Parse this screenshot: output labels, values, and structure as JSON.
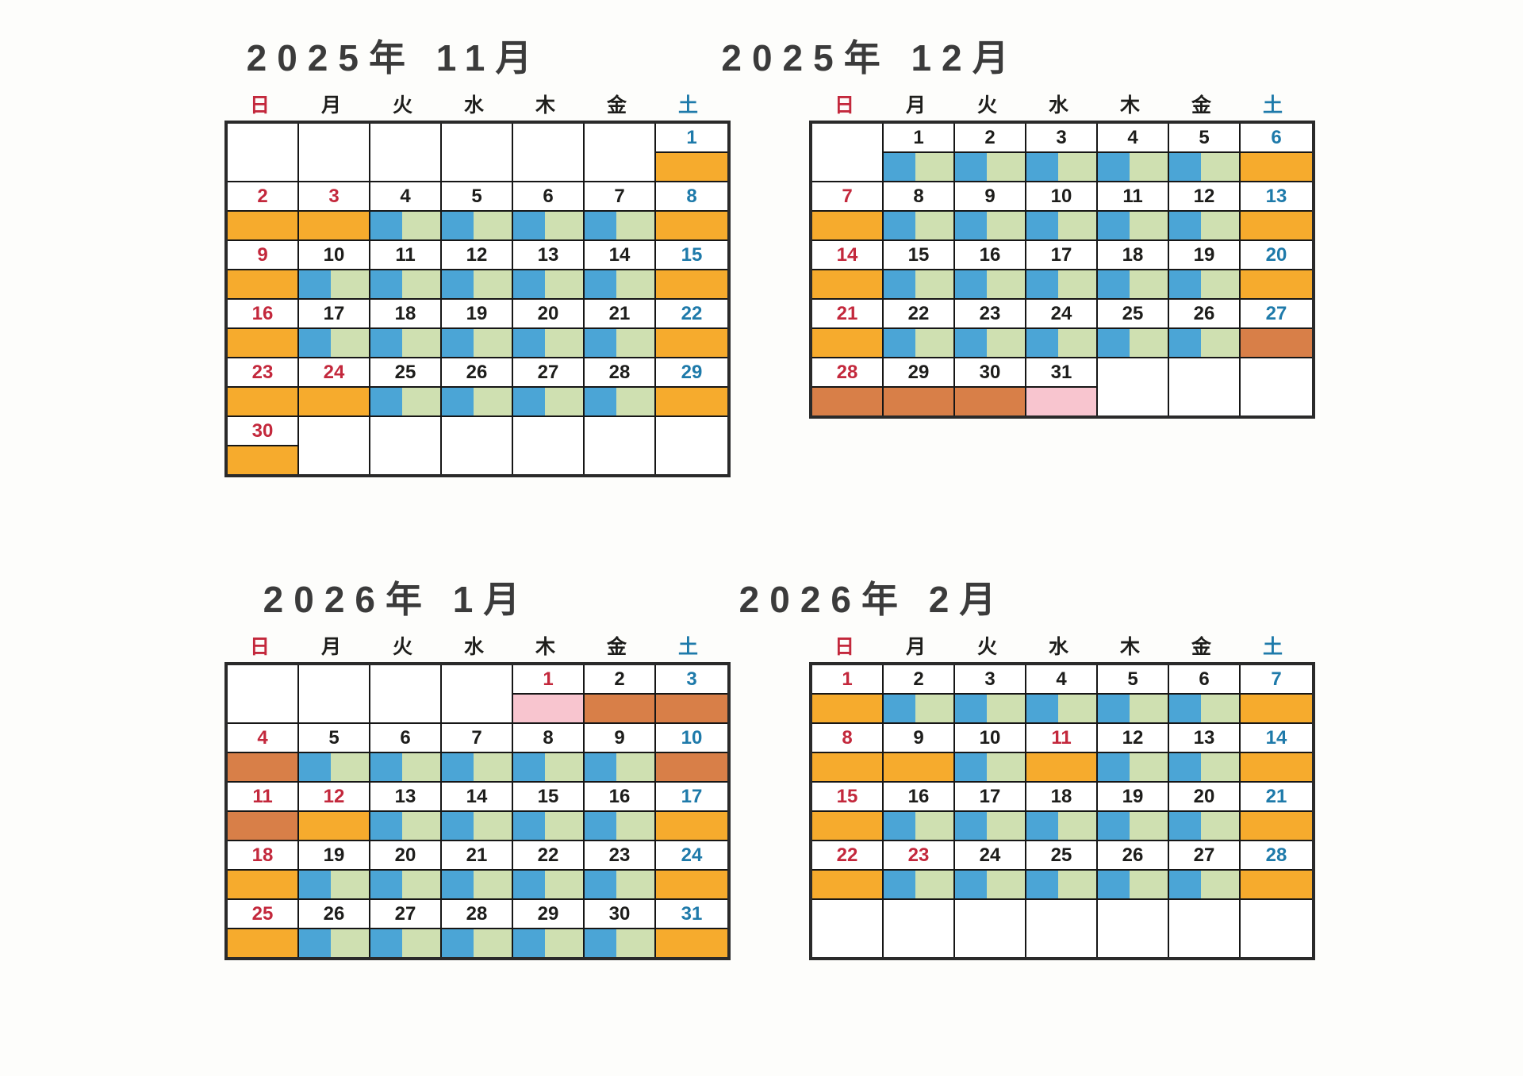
{
  "document": {
    "kind": "scanned shop closing-days calendar, 4 months",
    "background": "#fdfdfb"
  },
  "colors": {
    "closed_yellow": "#f6ab2d",
    "open_blue": "#4ba5d6",
    "open_green": "#cfe0b1",
    "closed_dark_orange": "#d87f48",
    "special_pink": "#f8c5cf",
    "sunday_text": "#c3283c",
    "saturday_text": "#1e7aaa",
    "weekday_text": "#1d1d1b",
    "title_text": "#3b3b3b",
    "grid_line": "#161616"
  },
  "weekdays": [
    {
      "label": "日",
      "color_key": "sunday_text"
    },
    {
      "label": "月",
      "color_key": "weekday_text"
    },
    {
      "label": "火",
      "color_key": "weekday_text"
    },
    {
      "label": "水",
      "color_key": "weekday_text"
    },
    {
      "label": "木",
      "color_key": "weekday_text"
    },
    {
      "label": "金",
      "color_key": "weekday_text"
    },
    {
      "label": "土",
      "color_key": "saturday_text"
    }
  ],
  "calendars": [
    {
      "title": "2025年 11月",
      "weeks": [
        [
          null,
          null,
          null,
          null,
          null,
          null,
          {
            "d": "1",
            "n": "blue",
            "band": "yellow"
          }
        ],
        [
          {
            "d": "2",
            "n": "red",
            "band": "yellow"
          },
          {
            "d": "3",
            "n": "red",
            "band": "yellow"
          },
          {
            "d": "4",
            "n": "black",
            "band": "open"
          },
          {
            "d": "5",
            "n": "black",
            "band": "open"
          },
          {
            "d": "6",
            "n": "black",
            "band": "open"
          },
          {
            "d": "7",
            "n": "black",
            "band": "open"
          },
          {
            "d": "8",
            "n": "blue",
            "band": "yellow"
          }
        ],
        [
          {
            "d": "9",
            "n": "red",
            "band": "yellow"
          },
          {
            "d": "10",
            "n": "black",
            "band": "open"
          },
          {
            "d": "11",
            "n": "black",
            "band": "open"
          },
          {
            "d": "12",
            "n": "black",
            "band": "open"
          },
          {
            "d": "13",
            "n": "black",
            "band": "open"
          },
          {
            "d": "14",
            "n": "black",
            "band": "open"
          },
          {
            "d": "15",
            "n": "blue",
            "band": "yellow"
          }
        ],
        [
          {
            "d": "16",
            "n": "red",
            "band": "yellow"
          },
          {
            "d": "17",
            "n": "black",
            "band": "open"
          },
          {
            "d": "18",
            "n": "black",
            "band": "open"
          },
          {
            "d": "19",
            "n": "black",
            "band": "open"
          },
          {
            "d": "20",
            "n": "black",
            "band": "open"
          },
          {
            "d": "21",
            "n": "black",
            "band": "open"
          },
          {
            "d": "22",
            "n": "blue",
            "band": "yellow"
          }
        ],
        [
          {
            "d": "23",
            "n": "red",
            "band": "yellow"
          },
          {
            "d": "24",
            "n": "red",
            "band": "yellow"
          },
          {
            "d": "25",
            "n": "black",
            "band": "open"
          },
          {
            "d": "26",
            "n": "black",
            "band": "open"
          },
          {
            "d": "27",
            "n": "black",
            "band": "open"
          },
          {
            "d": "28",
            "n": "black",
            "band": "open"
          },
          {
            "d": "29",
            "n": "blue",
            "band": "yellow"
          }
        ],
        [
          {
            "d": "30",
            "n": "red",
            "band": "yellow"
          },
          null,
          null,
          null,
          null,
          null,
          null
        ]
      ]
    },
    {
      "title": "2025年 12月",
      "weeks": [
        [
          null,
          {
            "d": "1",
            "n": "black",
            "band": "open"
          },
          {
            "d": "2",
            "n": "black",
            "band": "open"
          },
          {
            "d": "3",
            "n": "black",
            "band": "open"
          },
          {
            "d": "4",
            "n": "black",
            "band": "open"
          },
          {
            "d": "5",
            "n": "black",
            "band": "open"
          },
          {
            "d": "6",
            "n": "blue",
            "band": "yellow"
          }
        ],
        [
          {
            "d": "7",
            "n": "red",
            "band": "yellow"
          },
          {
            "d": "8",
            "n": "black",
            "band": "open"
          },
          {
            "d": "9",
            "n": "black",
            "band": "open"
          },
          {
            "d": "10",
            "n": "black",
            "band": "open"
          },
          {
            "d": "11",
            "n": "black",
            "band": "open"
          },
          {
            "d": "12",
            "n": "black",
            "band": "open"
          },
          {
            "d": "13",
            "n": "blue",
            "band": "yellow"
          }
        ],
        [
          {
            "d": "14",
            "n": "red",
            "band": "yellow"
          },
          {
            "d": "15",
            "n": "black",
            "band": "open"
          },
          {
            "d": "16",
            "n": "black",
            "band": "open"
          },
          {
            "d": "17",
            "n": "black",
            "band": "open"
          },
          {
            "d": "18",
            "n": "black",
            "band": "open"
          },
          {
            "d": "19",
            "n": "black",
            "band": "open"
          },
          {
            "d": "20",
            "n": "blue",
            "band": "yellow"
          }
        ],
        [
          {
            "d": "21",
            "n": "red",
            "band": "yellow"
          },
          {
            "d": "22",
            "n": "black",
            "band": "open"
          },
          {
            "d": "23",
            "n": "black",
            "band": "open"
          },
          {
            "d": "24",
            "n": "black",
            "band": "open"
          },
          {
            "d": "25",
            "n": "black",
            "band": "open"
          },
          {
            "d": "26",
            "n": "black",
            "band": "open"
          },
          {
            "d": "27",
            "n": "blue",
            "band": "dark_orange"
          }
        ],
        [
          {
            "d": "28",
            "n": "red",
            "band": "dark_orange"
          },
          {
            "d": "29",
            "n": "black",
            "band": "dark_orange"
          },
          {
            "d": "30",
            "n": "black",
            "band": "dark_orange"
          },
          {
            "d": "31",
            "n": "black",
            "band": "pink"
          },
          null,
          null,
          null
        ]
      ]
    },
    {
      "title": "2026年 1月",
      "weeks": [
        [
          null,
          null,
          null,
          null,
          {
            "d": "1",
            "n": "red",
            "band": "pink"
          },
          {
            "d": "2",
            "n": "black",
            "band": "dark_orange"
          },
          {
            "d": "3",
            "n": "blue",
            "band": "dark_orange"
          }
        ],
        [
          {
            "d": "4",
            "n": "red",
            "band": "dark_orange"
          },
          {
            "d": "5",
            "n": "black",
            "band": "open"
          },
          {
            "d": "6",
            "n": "black",
            "band": "open"
          },
          {
            "d": "7",
            "n": "black",
            "band": "open"
          },
          {
            "d": "8",
            "n": "black",
            "band": "open"
          },
          {
            "d": "9",
            "n": "black",
            "band": "open"
          },
          {
            "d": "10",
            "n": "blue",
            "band": "dark_orange"
          }
        ],
        [
          {
            "d": "11",
            "n": "red",
            "band": "dark_orange"
          },
          {
            "d": "12",
            "n": "red",
            "band": "yellow"
          },
          {
            "d": "13",
            "n": "black",
            "band": "open"
          },
          {
            "d": "14",
            "n": "black",
            "band": "open"
          },
          {
            "d": "15",
            "n": "black",
            "band": "open"
          },
          {
            "d": "16",
            "n": "black",
            "band": "open"
          },
          {
            "d": "17",
            "n": "blue",
            "band": "yellow"
          }
        ],
        [
          {
            "d": "18",
            "n": "red",
            "band": "yellow"
          },
          {
            "d": "19",
            "n": "black",
            "band": "open"
          },
          {
            "d": "20",
            "n": "black",
            "band": "open"
          },
          {
            "d": "21",
            "n": "black",
            "band": "open"
          },
          {
            "d": "22",
            "n": "black",
            "band": "open"
          },
          {
            "d": "23",
            "n": "black",
            "band": "open"
          },
          {
            "d": "24",
            "n": "blue",
            "band": "yellow"
          }
        ],
        [
          {
            "d": "25",
            "n": "red",
            "band": "yellow"
          },
          {
            "d": "26",
            "n": "black",
            "band": "open"
          },
          {
            "d": "27",
            "n": "black",
            "band": "open"
          },
          {
            "d": "28",
            "n": "black",
            "band": "open"
          },
          {
            "d": "29",
            "n": "black",
            "band": "open"
          },
          {
            "d": "30",
            "n": "black",
            "band": "open"
          },
          {
            "d": "31",
            "n": "blue",
            "band": "yellow"
          }
        ]
      ]
    },
    {
      "title": "2026年 2月",
      "weeks": [
        [
          {
            "d": "1",
            "n": "red",
            "band": "yellow"
          },
          {
            "d": "2",
            "n": "black",
            "band": "open"
          },
          {
            "d": "3",
            "n": "black",
            "band": "open"
          },
          {
            "d": "4",
            "n": "black",
            "band": "open"
          },
          {
            "d": "5",
            "n": "black",
            "band": "open"
          },
          {
            "d": "6",
            "n": "black",
            "band": "open"
          },
          {
            "d": "7",
            "n": "blue",
            "band": "yellow"
          }
        ],
        [
          {
            "d": "8",
            "n": "red",
            "band": "yellow"
          },
          {
            "d": "9",
            "n": "black",
            "band": "yellow"
          },
          {
            "d": "10",
            "n": "black",
            "band": "open"
          },
          {
            "d": "11",
            "n": "red",
            "band": "yellow"
          },
          {
            "d": "12",
            "n": "black",
            "band": "open"
          },
          {
            "d": "13",
            "n": "black",
            "band": "open"
          },
          {
            "d": "14",
            "n": "blue",
            "band": "yellow"
          }
        ],
        [
          {
            "d": "15",
            "n": "red",
            "band": "yellow"
          },
          {
            "d": "16",
            "n": "black",
            "band": "open"
          },
          {
            "d": "17",
            "n": "black",
            "band": "open"
          },
          {
            "d": "18",
            "n": "black",
            "band": "open"
          },
          {
            "d": "19",
            "n": "black",
            "band": "open"
          },
          {
            "d": "20",
            "n": "black",
            "band": "open"
          },
          {
            "d": "21",
            "n": "blue",
            "band": "yellow"
          }
        ],
        [
          {
            "d": "22",
            "n": "red",
            "band": "yellow"
          },
          {
            "d": "23",
            "n": "red",
            "band": "open"
          },
          {
            "d": "24",
            "n": "black",
            "band": "open"
          },
          {
            "d": "25",
            "n": "black",
            "band": "open"
          },
          {
            "d": "26",
            "n": "black",
            "band": "open"
          },
          {
            "d": "27",
            "n": "black",
            "band": "open"
          },
          {
            "d": "28",
            "n": "blue",
            "band": "yellow"
          }
        ],
        [
          null,
          null,
          null,
          null,
          null,
          null,
          null
        ]
      ]
    }
  ]
}
